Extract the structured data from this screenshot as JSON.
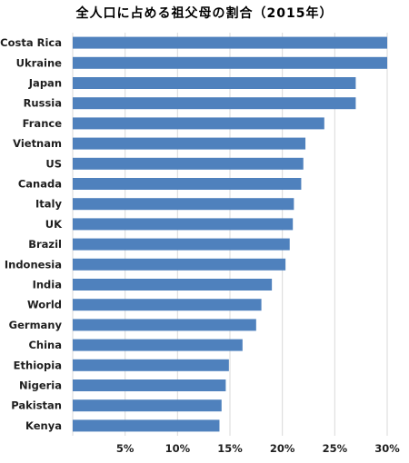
{
  "chart_data": {
    "type": "bar",
    "orientation": "horizontal",
    "title": "全人口に占める祖父母の割合（2015年）",
    "categories": [
      "Costa Rica",
      "Ukraine",
      "Japan",
      "Russia",
      "France",
      "Vietnam",
      "US",
      "Canada",
      "Italy",
      "UK",
      "Brazil",
      "Indonesia",
      "India",
      "World",
      "Germany",
      "China",
      "Ethiopia",
      "Nigeria",
      "Pakistan",
      "Kenya"
    ],
    "values": [
      30,
      30,
      27,
      27,
      24,
      22.2,
      22,
      21.8,
      21.1,
      21,
      20.7,
      20.3,
      19,
      18,
      17.5,
      16.2,
      14.9,
      14.6,
      14.2,
      14
    ],
    "xlim": [
      0,
      30
    ],
    "xticks": [
      5,
      10,
      15,
      20,
      25,
      30
    ],
    "xtick_labels": [
      "5%",
      "10%",
      "15%",
      "20%",
      "25%",
      "30%"
    ],
    "grid": "vertical gridlines",
    "bar_color": "#4f81bd",
    "grid_color": "#d9d9d9"
  }
}
